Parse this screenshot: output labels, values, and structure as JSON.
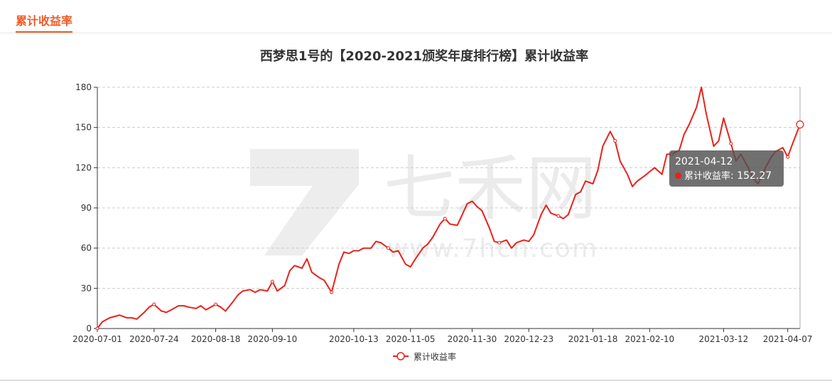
{
  "header": {
    "tab_title": "累计收益率"
  },
  "watermark": {
    "brand": "七禾网",
    "url": "www.7hcn.com"
  },
  "tooltip": {
    "date": "2021-04-12",
    "series_name": "累计收益率",
    "value_text": "152.27"
  },
  "colors": {
    "accent": "#f05a24",
    "line": "#e8211b"
  },
  "chart_data": {
    "type": "line",
    "title": "西梦思1号的【2020-2021颁奖年度排行榜】累计收益率",
    "xlabel": "",
    "ylabel": "",
    "ylim": [
      0,
      180
    ],
    "yticks": [
      0,
      30,
      60,
      90,
      120,
      150,
      180
    ],
    "xticks": [
      "2020-07-01",
      "2020-07-24",
      "2020-08-18",
      "2020-09-10",
      "2020-10-13",
      "2020-11-05",
      "2020-11-30",
      "2020-12-23",
      "2021-01-18",
      "2021-02-10",
      "2021-03-12",
      "2021-04-07"
    ],
    "grid": true,
    "legend": "bottom-center",
    "series": [
      {
        "name": "累计收益率",
        "x": [
          "2020-07-01",
          "2020-07-03",
          "2020-07-06",
          "2020-07-08",
          "2020-07-10",
          "2020-07-13",
          "2020-07-15",
          "2020-07-17",
          "2020-07-20",
          "2020-07-22",
          "2020-07-24",
          "2020-07-27",
          "2020-07-29",
          "2020-07-31",
          "2020-08-03",
          "2020-08-05",
          "2020-08-07",
          "2020-08-10",
          "2020-08-12",
          "2020-08-14",
          "2020-08-18",
          "2020-08-20",
          "2020-08-22",
          "2020-08-25",
          "2020-08-27",
          "2020-08-29",
          "2020-09-01",
          "2020-09-03",
          "2020-09-05",
          "2020-09-08",
          "2020-09-10",
          "2020-09-12",
          "2020-09-15",
          "2020-09-17",
          "2020-09-19",
          "2020-09-22",
          "2020-09-24",
          "2020-09-26",
          "2020-09-29",
          "2020-10-01",
          "2020-10-04",
          "2020-10-07",
          "2020-10-09",
          "2020-10-11",
          "2020-10-13",
          "2020-10-15",
          "2020-10-17",
          "2020-10-20",
          "2020-10-22",
          "2020-10-24",
          "2020-10-27",
          "2020-10-29",
          "2020-10-31",
          "2020-11-03",
          "2020-11-05",
          "2020-11-07",
          "2020-11-10",
          "2020-11-12",
          "2020-11-14",
          "2020-11-17",
          "2020-11-19",
          "2020-11-21",
          "2020-11-24",
          "2020-11-26",
          "2020-11-28",
          "2020-11-30",
          "2020-12-02",
          "2020-12-04",
          "2020-12-07",
          "2020-12-09",
          "2020-12-11",
          "2020-12-14",
          "2020-12-16",
          "2020-12-18",
          "2020-12-21",
          "2020-12-23",
          "2020-12-25",
          "2020-12-28",
          "2020-12-30",
          "2021-01-01",
          "2021-01-04",
          "2021-01-06",
          "2021-01-08",
          "2021-01-11",
          "2021-01-13",
          "2021-01-15",
          "2021-01-18",
          "2021-01-20",
          "2021-01-22",
          "2021-01-25",
          "2021-01-27",
          "2021-01-29",
          "2021-02-01",
          "2021-02-03",
          "2021-02-05",
          "2021-02-08",
          "2021-02-10",
          "2021-02-12",
          "2021-02-15",
          "2021-02-17",
          "2021-02-19",
          "2021-02-22",
          "2021-02-24",
          "2021-02-26",
          "2021-03-01",
          "2021-03-03",
          "2021-03-05",
          "2021-03-08",
          "2021-03-10",
          "2021-03-12",
          "2021-03-15",
          "2021-03-17",
          "2021-03-19",
          "2021-03-22",
          "2021-03-24",
          "2021-03-26",
          "2021-03-29",
          "2021-03-31",
          "2021-04-02",
          "2021-04-05",
          "2021-04-07",
          "2021-04-09",
          "2021-04-12"
        ],
        "y": [
          0,
          5,
          8,
          9,
          10,
          8,
          8,
          7,
          12,
          16,
          18,
          13,
          12,
          14,
          17,
          17,
          16,
          15,
          17,
          14,
          18,
          16,
          13,
          20,
          25,
          28,
          29,
          27,
          29,
          28,
          35,
          28,
          32,
          43,
          47,
          45,
          52,
          42,
          38,
          36,
          27,
          48,
          57,
          56,
          58,
          58,
          60,
          60,
          65,
          64,
          60,
          57,
          58,
          48,
          46,
          52,
          60,
          63,
          68,
          78,
          82,
          78,
          77,
          85,
          93,
          95,
          91,
          88,
          75,
          65,
          64,
          66,
          60,
          64,
          66,
          65,
          70,
          85,
          92,
          86,
          84,
          82,
          85,
          100,
          102,
          110,
          108,
          118,
          136,
          147,
          140,
          125,
          115,
          106,
          110,
          114,
          117,
          120,
          115,
          130,
          130,
          133,
          145,
          152,
          165,
          180,
          160,
          136,
          140,
          157,
          138,
          125,
          130,
          120,
          112,
          108,
          120,
          127,
          132,
          135,
          128,
          138,
          152.27
        ]
      }
    ]
  }
}
